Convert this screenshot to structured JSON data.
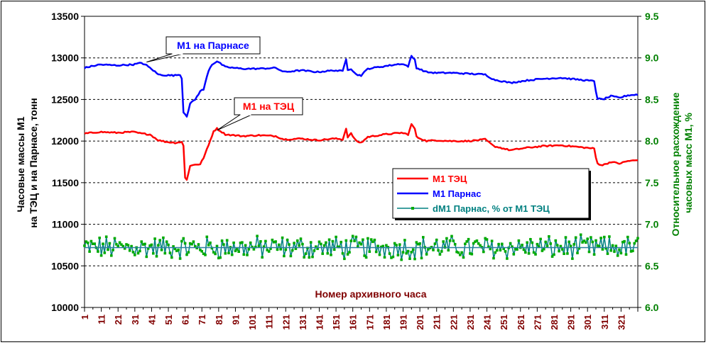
{
  "chart_data": {
    "type": "line",
    "xlabel": "Номер архивного часа",
    "ylabel_left": [
      "Часовые массы М1",
      "на ТЭЦ и на Парнасе, тонн"
    ],
    "ylabel_right": [
      "Относительное расхождение",
      "часовых масс М1, %"
    ],
    "ylim_left": [
      10000,
      13500
    ],
    "yticks_left": [
      10000,
      10500,
      11000,
      11500,
      12000,
      12500,
      13000,
      13500
    ],
    "ylim_right": [
      6.0,
      9.5
    ],
    "yticks_right": [
      "6.0",
      "6.5",
      "7.0",
      "7.5",
      "8.0",
      "8.5",
      "9.0",
      "9.5"
    ],
    "xlim": [
      1,
      331
    ],
    "xticks": [
      1,
      11,
      21,
      31,
      41,
      51,
      61,
      71,
      81,
      91,
      101,
      111,
      121,
      131,
      141,
      151,
      161,
      171,
      181,
      191,
      201,
      211,
      221,
      231,
      241,
      251,
      261,
      271,
      281,
      291,
      301,
      311,
      321
    ],
    "grid": "horizontal dashed",
    "legend_position": "right-middle",
    "colors": {
      "tec": "#ff0000",
      "parnas": "#0000ff",
      "dm": "#008080",
      "dm_marker": "#00aa00",
      "left_axis_text": "#000000",
      "right_axis_text": "#008000",
      "xlabel": "#800000",
      "xtick_text": "#800000"
    },
    "annotations": [
      {
        "text": "М1 на Парнасе",
        "x": 38,
        "y": 12950,
        "color": "#0000ff"
      },
      {
        "text": "М1 на ТЭЦ",
        "x": 80,
        "y": 12130,
        "color": "#ff0000"
      }
    ],
    "series": [
      {
        "name": "М1 ТЭЦ",
        "axis": "left",
        "color": "#ff0000",
        "knots": [
          [
            1,
            12090
          ],
          [
            10,
            12110
          ],
          [
            20,
            12100
          ],
          [
            30,
            12110
          ],
          [
            35,
            12090
          ],
          [
            40,
            12080
          ],
          [
            45,
            12010
          ],
          [
            50,
            11990
          ],
          [
            55,
            11980
          ],
          [
            59,
            11990
          ],
          [
            60,
            11940
          ],
          [
            61,
            11560
          ],
          [
            62,
            11540
          ],
          [
            64,
            11700
          ],
          [
            67,
            11720
          ],
          [
            70,
            11720
          ],
          [
            72,
            11800
          ],
          [
            75,
            11950
          ],
          [
            78,
            12120
          ],
          [
            80,
            12150
          ],
          [
            85,
            12080
          ],
          [
            95,
            12060
          ],
          [
            105,
            12070
          ],
          [
            115,
            12060
          ],
          [
            120,
            12020
          ],
          [
            130,
            12030
          ],
          [
            140,
            12010
          ],
          [
            150,
            12030
          ],
          [
            155,
            12020
          ],
          [
            157,
            12150
          ],
          [
            158,
            12050
          ],
          [
            160,
            12090
          ],
          [
            163,
            12000
          ],
          [
            166,
            11980
          ],
          [
            170,
            12050
          ],
          [
            180,
            12080
          ],
          [
            190,
            12100
          ],
          [
            194,
            12080
          ],
          [
            196,
            12200
          ],
          [
            198,
            12150
          ],
          [
            199,
            12050
          ],
          [
            205,
            12000
          ],
          [
            210,
            12010
          ],
          [
            220,
            12000
          ],
          [
            230,
            12000
          ],
          [
            240,
            12020
          ],
          [
            245,
            11940
          ],
          [
            255,
            11890
          ],
          [
            265,
            11920
          ],
          [
            275,
            11940
          ],
          [
            285,
            11950
          ],
          [
            295,
            11930
          ],
          [
            305,
            11910
          ],
          [
            306,
            11800
          ],
          [
            307,
            11730
          ],
          [
            310,
            11710
          ],
          [
            315,
            11750
          ],
          [
            320,
            11730
          ],
          [
            325,
            11760
          ],
          [
            331,
            11770
          ]
        ],
        "noise": 8
      },
      {
        "name": "М1 Парнас",
        "axis": "left",
        "color": "#0000ff",
        "knots": [
          [
            1,
            12880
          ],
          [
            10,
            12920
          ],
          [
            20,
            12910
          ],
          [
            30,
            12920
          ],
          [
            35,
            12940
          ],
          [
            38,
            12910
          ],
          [
            42,
            12850
          ],
          [
            45,
            12800
          ],
          [
            50,
            12790
          ],
          [
            55,
            12790
          ],
          [
            58,
            12800
          ],
          [
            59,
            12750
          ],
          [
            60,
            12350
          ],
          [
            62,
            12300
          ],
          [
            64,
            12450
          ],
          [
            67,
            12500
          ],
          [
            70,
            12600
          ],
          [
            72,
            12620
          ],
          [
            75,
            12850
          ],
          [
            77,
            12920
          ],
          [
            80,
            12960
          ],
          [
            85,
            12890
          ],
          [
            95,
            12870
          ],
          [
            105,
            12870
          ],
          [
            115,
            12880
          ],
          [
            120,
            12830
          ],
          [
            130,
            12850
          ],
          [
            140,
            12830
          ],
          [
            150,
            12850
          ],
          [
            155,
            12840
          ],
          [
            157,
            12990
          ],
          [
            158,
            12860
          ],
          [
            160,
            12870
          ],
          [
            163,
            12800
          ],
          [
            166,
            12790
          ],
          [
            170,
            12870
          ],
          [
            180,
            12900
          ],
          [
            190,
            12930
          ],
          [
            194,
            12900
          ],
          [
            196,
            13020
          ],
          [
            198,
            12980
          ],
          [
            199,
            12880
          ],
          [
            205,
            12830
          ],
          [
            210,
            12820
          ],
          [
            220,
            12820
          ],
          [
            230,
            12810
          ],
          [
            240,
            12800
          ],
          [
            245,
            12740
          ],
          [
            255,
            12700
          ],
          [
            265,
            12730
          ],
          [
            275,
            12750
          ],
          [
            285,
            12760
          ],
          [
            295,
            12740
          ],
          [
            305,
            12720
          ],
          [
            306,
            12600
          ],
          [
            307,
            12510
          ],
          [
            310,
            12500
          ],
          [
            315,
            12540
          ],
          [
            320,
            12520
          ],
          [
            325,
            12550
          ],
          [
            331,
            12560
          ]
        ],
        "noise": 8
      },
      {
        "name": "dM1 Парнас, % от М1 ТЭЦ",
        "axis": "right",
        "color": "#008080",
        "marker_color": "#00aa00",
        "mean": 6.72,
        "amplitude": 0.12,
        "noise": 0.08
      }
    ]
  }
}
